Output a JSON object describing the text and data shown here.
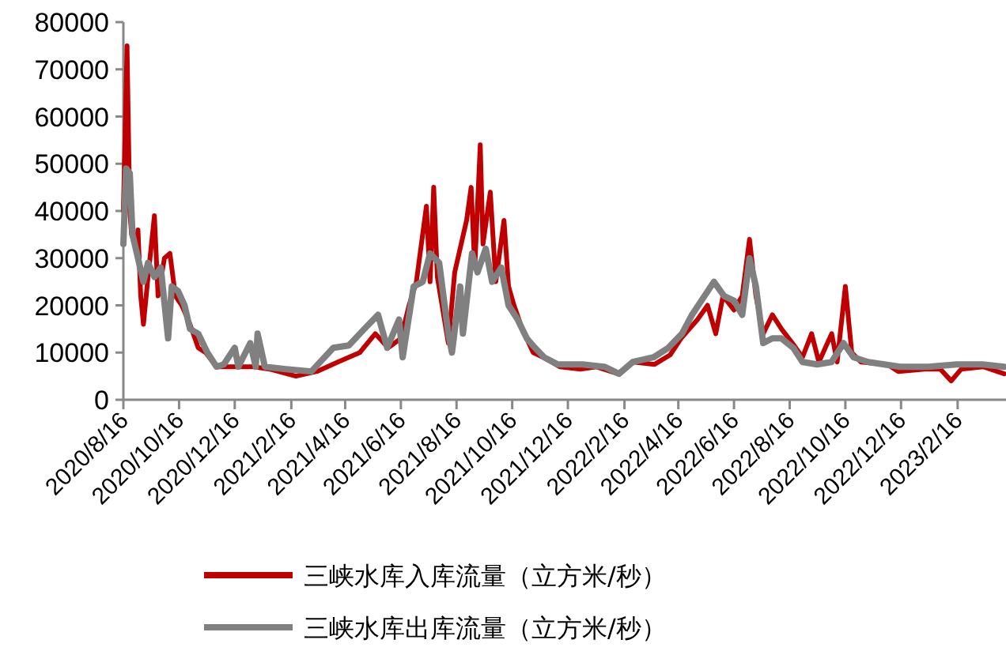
{
  "chart_data": {
    "type": "line",
    "xlim": [
      "2020-08-16",
      "2023-04-10"
    ],
    "ylim": [
      0,
      80000
    ],
    "yticks": [
      0,
      10000,
      20000,
      30000,
      40000,
      50000,
      60000,
      70000,
      80000
    ],
    "xticks": [
      {
        "value": "2020-08-16",
        "label": "2020/8/16"
      },
      {
        "value": "2020-10-16",
        "label": "2020/10/16"
      },
      {
        "value": "2020-12-16",
        "label": "2020/12/16"
      },
      {
        "value": "2021-02-16",
        "label": "2021/2/16"
      },
      {
        "value": "2021-04-16",
        "label": "2021/4/16"
      },
      {
        "value": "2021-06-16",
        "label": "2021/6/16"
      },
      {
        "value": "2021-08-16",
        "label": "2021/8/16"
      },
      {
        "value": "2021-10-16",
        "label": "2021/10/16"
      },
      {
        "value": "2021-12-16",
        "label": "2021/12/16"
      },
      {
        "value": "2022-02-16",
        "label": "2022/2/16"
      },
      {
        "value": "2022-04-16",
        "label": "2022/4/16"
      },
      {
        "value": "2022-06-16",
        "label": "2022/6/16"
      },
      {
        "value": "2022-08-16",
        "label": "2022/8/16"
      },
      {
        "value": "2022-10-16",
        "label": "2022/10/16"
      },
      {
        "value": "2022-12-16",
        "label": "2022/12/16"
      },
      {
        "value": "2023-02-16",
        "label": "2023/2/16"
      }
    ],
    "grid": false,
    "legend": "bottom",
    "series": [
      {
        "name": "三峡水库入库流量（立方米/秒）",
        "color": "#c00000",
        "x": [
          "2020-08-16",
          "2020-08-20",
          "2020-08-23",
          "2020-08-25",
          "2020-08-30",
          "2020-09-01",
          "2020-09-04",
          "2020-09-07",
          "2020-09-12",
          "2020-09-19",
          "2020-09-23",
          "2020-09-30",
          "2020-10-06",
          "2020-10-12",
          "2020-10-19",
          "2020-10-28",
          "2020-11-06",
          "2020-11-14",
          "2020-11-26",
          "2020-12-13",
          "2021-01-06",
          "2021-01-23",
          "2021-02-21",
          "2021-03-16",
          "2021-04-08",
          "2021-05-02",
          "2021-05-19",
          "2021-06-02",
          "2021-06-16",
          "2021-06-25",
          "2021-07-03",
          "2021-07-14",
          "2021-07-18",
          "2021-07-22",
          "2021-07-26",
          "2021-08-07",
          "2021-08-14",
          "2021-08-27",
          "2021-09-01",
          "2021-09-05",
          "2021-09-11",
          "2021-09-14",
          "2021-09-22",
          "2021-09-28",
          "2021-10-07",
          "2021-10-12",
          "2021-10-18",
          "2021-10-27",
          "2021-11-08",
          "2021-11-19",
          "2021-12-07",
          "2021-12-30",
          "2022-01-16",
          "2022-02-09",
          "2022-02-26",
          "2022-03-21",
          "2022-04-07",
          "2022-04-19",
          "2022-05-07",
          "2022-05-18",
          "2022-05-27",
          "2022-06-04",
          "2022-06-16",
          "2022-06-25",
          "2022-07-03",
          "2022-07-10",
          "2022-07-18",
          "2022-07-28",
          "2022-08-07",
          "2022-08-19",
          "2022-08-30",
          "2022-09-09",
          "2022-09-17",
          "2022-10-01",
          "2022-10-07",
          "2022-10-16",
          "2022-10-23",
          "2022-11-02",
          "2022-12-01",
          "2022-12-13",
          "2023-01-11",
          "2023-01-28",
          "2023-02-09",
          "2023-02-20",
          "2023-03-16",
          "2023-04-08"
        ],
        "values": [
          40000,
          75000,
          40000,
          35000,
          32000,
          36000,
          22000,
          16000,
          26000,
          39000,
          22000,
          30000,
          31000,
          22000,
          20000,
          16000,
          11000,
          10000,
          7000,
          7000,
          7000,
          6500,
          5000,
          6000,
          8000,
          10000,
          14000,
          11000,
          13000,
          20000,
          25000,
          41000,
          25000,
          45000,
          26000,
          12000,
          27000,
          38000,
          45000,
          28000,
          54000,
          33000,
          44000,
          25000,
          38000,
          24000,
          20000,
          15000,
          10000,
          9000,
          7000,
          6500,
          7000,
          5500,
          8000,
          7500,
          9500,
          13000,
          17000,
          20000,
          14000,
          22000,
          19000,
          22000,
          34000,
          22000,
          14000,
          18000,
          15000,
          12000,
          9000,
          14000,
          8000,
          14000,
          8000,
          24000,
          10000,
          8000,
          7500,
          6000,
          6500,
          6500,
          4000,
          6500,
          7000,
          5500
        ]
      },
      {
        "name": "三峡水库出库流量（立方米/秒）",
        "color": "#808080",
        "x": [
          "2020-08-16",
          "2020-08-19",
          "2020-08-23",
          "2020-08-26",
          "2020-09-01",
          "2020-09-07",
          "2020-09-12",
          "2020-09-19",
          "2020-09-26",
          "2020-10-04",
          "2020-10-08",
          "2020-10-15",
          "2020-10-22",
          "2020-10-28",
          "2020-11-06",
          "2020-11-16",
          "2020-11-26",
          "2020-12-04",
          "2020-12-16",
          "2020-12-20",
          "2021-01-02",
          "2021-01-08",
          "2021-01-10",
          "2021-01-18",
          "2021-02-10",
          "2021-03-10",
          "2021-04-03",
          "2021-04-20",
          "2021-05-07",
          "2021-05-22",
          "2021-06-01",
          "2021-06-14",
          "2021-06-18",
          "2021-06-30",
          "2021-07-10",
          "2021-07-18",
          "2021-07-28",
          "2021-08-07",
          "2021-08-11",
          "2021-08-20",
          "2021-08-23",
          "2021-09-02",
          "2021-09-08",
          "2021-09-17",
          "2021-09-24",
          "2021-10-04",
          "2021-10-12",
          "2021-10-22",
          "2021-11-01",
          "2021-11-10",
          "2021-11-20",
          "2021-12-05",
          "2022-01-01",
          "2022-01-25",
          "2022-02-10",
          "2022-02-25",
          "2022-03-20",
          "2022-04-05",
          "2022-04-20",
          "2022-05-01",
          "2022-05-25",
          "2022-06-05",
          "2022-06-16",
          "2022-06-25",
          "2022-07-03",
          "2022-07-10",
          "2022-07-18",
          "2022-07-28",
          "2022-08-07",
          "2022-08-20",
          "2022-08-30",
          "2022-09-15",
          "2022-10-01",
          "2022-10-14",
          "2022-10-25",
          "2022-11-10",
          "2022-12-15",
          "2023-01-15",
          "2023-02-15",
          "2023-03-15",
          "2023-04-08"
        ],
        "values": [
          33000,
          49000,
          48000,
          35000,
          30000,
          25000,
          29000,
          26000,
          28000,
          13000,
          24000,
          23000,
          20000,
          15000,
          14000,
          10000,
          7000,
          7500,
          11000,
          7000,
          12000,
          7000,
          14000,
          7000,
          6500,
          6000,
          11000,
          11500,
          15000,
          18000,
          11000,
          17000,
          9000,
          24000,
          25000,
          31000,
          29000,
          14000,
          10000,
          24000,
          14000,
          31000,
          27000,
          32000,
          25000,
          28000,
          20000,
          17000,
          13000,
          11000,
          9000,
          7500,
          7500,
          7000,
          5500,
          8000,
          9000,
          11000,
          14000,
          18000,
          25000,
          22000,
          21000,
          18000,
          30000,
          24000,
          12000,
          13000,
          13000,
          11000,
          8000,
          7500,
          8000,
          12000,
          9000,
          8000,
          7000,
          7000,
          7500,
          7500,
          7000
        ]
      }
    ]
  }
}
